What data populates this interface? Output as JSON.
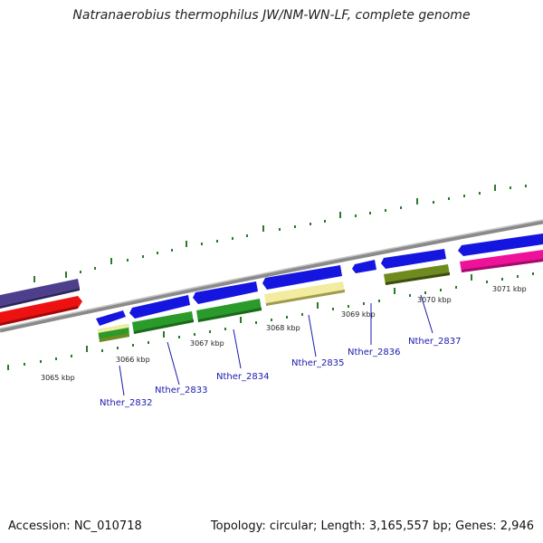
{
  "title": "Natranaerobius thermophilus JW/NM-WN-LF, complete genome",
  "footer": {
    "accession": "Accession: NC_010718",
    "summary": "Topology: circular; Length: 3,165,557 bp; Genes: 2,946"
  },
  "colors": {
    "cds_blue": "#1515e0",
    "gene_green": "#2a9a2a",
    "olive": "#6f8a1f",
    "pale_yellow": "#f2eca0",
    "purple": "#4d3f8c",
    "red": "#ee1111",
    "magenta": "#ee1199",
    "backbone": "#8a8a8a",
    "tick": "#2a7a2a",
    "label": "#1a1ab0"
  },
  "kbp_labels": [
    "3065 kbp",
    "3066 kbp",
    "3067 kbp",
    "3068 kbp",
    "3069 kbp",
    "3070 kbp",
    "3071 kbp"
  ],
  "gene_labels": [
    "Nther_2832",
    "Nther_2833",
    "Nther_2834",
    "Nther_2835",
    "Nther_2836",
    "Nther_2837"
  ]
}
